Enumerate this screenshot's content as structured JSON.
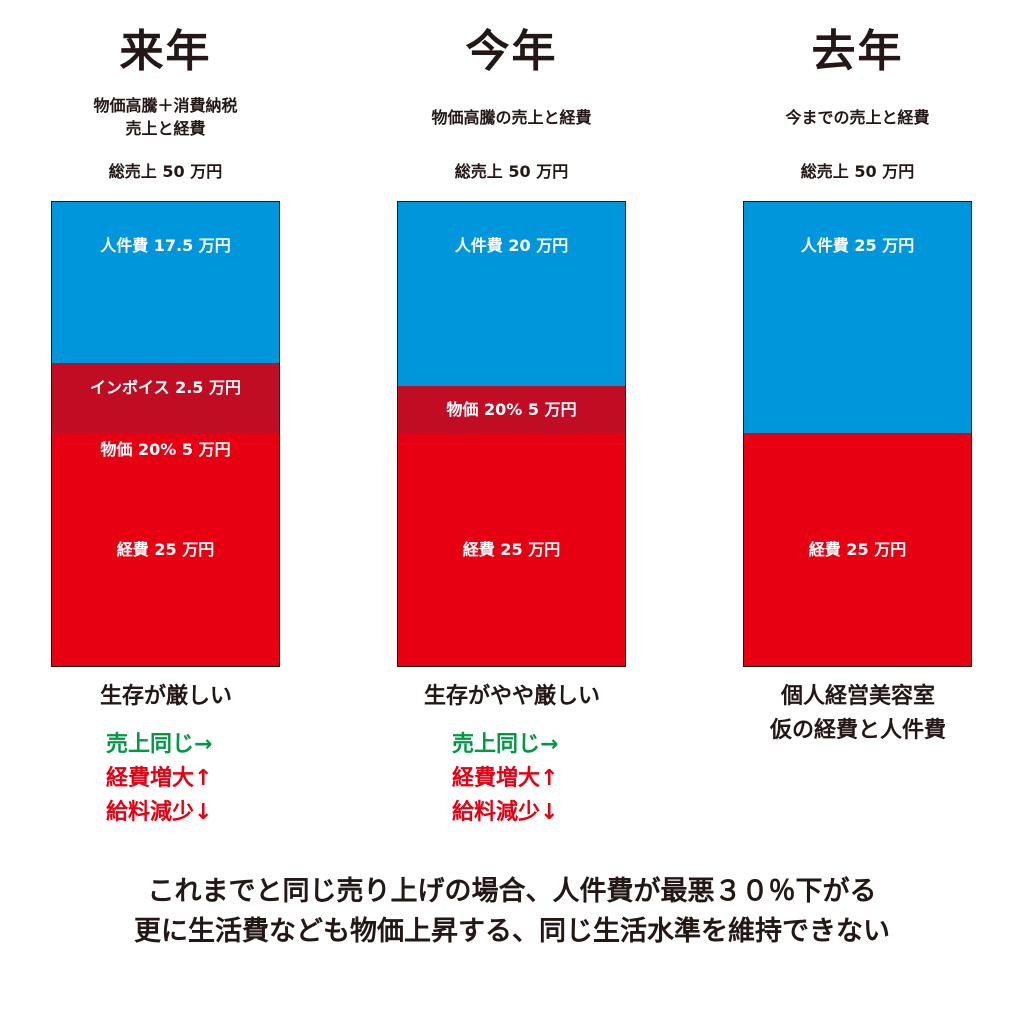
{
  "colors": {
    "personnel": "#0096dc",
    "invoice_price": "#c00d23",
    "expense": "#e60012",
    "green": "#009a44",
    "red": "#e60012",
    "text": "#231815"
  },
  "chart_data": [
    {
      "type": "bar",
      "stacked": true,
      "title": "来年",
      "subtitle": [
        "物価高騰＋消費納税",
        "売上と経費"
      ],
      "total_label": "総売上 50 万円",
      "total": 50,
      "unit": "万円",
      "segments": [
        {
          "name": "経費",
          "value": 25,
          "color": "expense",
          "labels": [
            "経費 25 万円"
          ]
        },
        {
          "name": "インボイス・物価",
          "value": 7.5,
          "color": "invoice_price",
          "labels": [
            "インボイス 2.5 万円",
            "物価 20% 5 万円"
          ]
        },
        {
          "name": "人件費",
          "value": 17.5,
          "color": "personnel",
          "labels": [
            "人件費 17.5 万円"
          ]
        }
      ],
      "status": [
        "生存が厳しい"
      ],
      "notes": [
        {
          "text": "売上同じ→",
          "color": "green"
        },
        {
          "text": "経費増大↑",
          "color": "red"
        },
        {
          "text": "給料減少↓",
          "color": "red"
        }
      ]
    },
    {
      "type": "bar",
      "stacked": true,
      "title": "今年",
      "subtitle": [
        "物価高騰の売上と経費"
      ],
      "total_label": "総売上 50 万円",
      "total": 50,
      "unit": "万円",
      "segments": [
        {
          "name": "経費",
          "value": 25,
          "color": "expense",
          "labels": [
            "経費 25 万円"
          ]
        },
        {
          "name": "物価",
          "value": 5,
          "color": "invoice_price",
          "labels": [
            "物価 20% 5 万円"
          ]
        },
        {
          "name": "人件費",
          "value": 20,
          "color": "personnel",
          "labels": [
            "人件費 20 万円"
          ]
        }
      ],
      "status": [
        "生存がやや厳しい"
      ],
      "notes": [
        {
          "text": "売上同じ→",
          "color": "green"
        },
        {
          "text": "経費増大↑",
          "color": "red"
        },
        {
          "text": "給料減少↓",
          "color": "red"
        }
      ]
    },
    {
      "type": "bar",
      "stacked": true,
      "title": "去年",
      "subtitle": [
        "今までの売上と経費"
      ],
      "total_label": "総売上 50 万円",
      "total": 50,
      "unit": "万円",
      "segments": [
        {
          "name": "経費",
          "value": 25,
          "color": "expense",
          "labels": [
            "経費 25 万円"
          ]
        },
        {
          "name": "人件費",
          "value": 25,
          "color": "personnel",
          "labels": [
            "人件費 25 万円"
          ]
        }
      ],
      "status": [
        "個人経営美容室",
        "仮の経費と人件費"
      ],
      "notes": []
    }
  ],
  "bottom_text": [
    "これまでと同じ売り上げの場合、人件費が最悪３０％下がる",
    "更に生活費なども物価上昇する、同じ生活水準を維持できない"
  ]
}
